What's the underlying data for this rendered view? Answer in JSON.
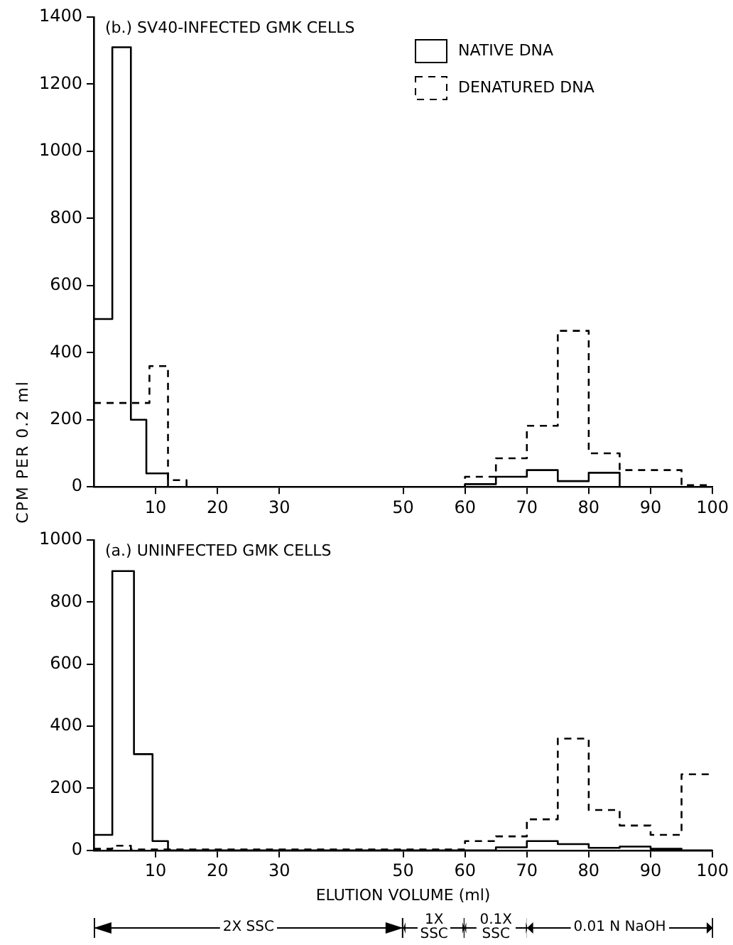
{
  "chart_data": [
    {
      "type": "step",
      "title": "(b.) SV40-INFECTED GMK CELLS",
      "ylabel": "CPM PER 0.2 ml",
      "xlim": [
        0,
        100
      ],
      "xticks": [
        10,
        20,
        30,
        50,
        60,
        70,
        80,
        90,
        100
      ],
      "ylim": [
        0,
        1400
      ],
      "yticks": [
        0,
        200,
        400,
        600,
        800,
        1000,
        1200,
        1400
      ],
      "legend": "top right",
      "grid": false,
      "series": [
        {
          "name": "NATIVE DNA",
          "color": "#000000",
          "line_style": "solid",
          "x": [
            0,
            3,
            6,
            8.5,
            12,
            60,
            65,
            70,
            75,
            80,
            85,
            100
          ],
          "values": [
            500,
            1310,
            200,
            40,
            0,
            8,
            30,
            50,
            17,
            42,
            0,
            0
          ]
        },
        {
          "name": "DENATURED DNA",
          "color": "#000000",
          "line_style": "dashed",
          "x": [
            0,
            9,
            12,
            15,
            60,
            65,
            70,
            75,
            80,
            85,
            95,
            100
          ],
          "values": [
            250,
            360,
            20,
            0,
            30,
            85,
            182,
            465,
            100,
            50,
            5,
            5
          ]
        }
      ]
    },
    {
      "type": "step",
      "title": "(a.) UNINFECTED GMK CELLS",
      "xlabel": "ELUTION VOLUME (ml)",
      "xlim": [
        0,
        100
      ],
      "xticks": [
        10,
        20,
        30,
        50,
        60,
        70,
        80,
        90,
        100
      ],
      "ylim": [
        0,
        1000
      ],
      "yticks": [
        0,
        200,
        400,
        600,
        800,
        1000
      ],
      "grid": false,
      "annotations": [
        "2X SSC",
        "1X SSC",
        "0.1X SSC",
        "0.01 N NaOH"
      ],
      "series": [
        {
          "color": "#000000",
          "line_style": "solid",
          "x": [
            0,
            3,
            6.5,
            9.5,
            12,
            65,
            70,
            75,
            80,
            85,
            90,
            95,
            100
          ],
          "values": [
            50,
            900,
            310,
            30,
            0,
            10,
            30,
            20,
            8,
            12,
            5,
            0,
            0
          ]
        },
        {
          "color": "#000000",
          "line_style": "dashed",
          "x": [
            0,
            3,
            6,
            60,
            65,
            70,
            75,
            80,
            85,
            90,
            95,
            100
          ],
          "values": [
            5,
            15,
            3,
            30,
            45,
            100,
            360,
            130,
            80,
            50,
            245,
            245
          ]
        }
      ]
    }
  ]
}
